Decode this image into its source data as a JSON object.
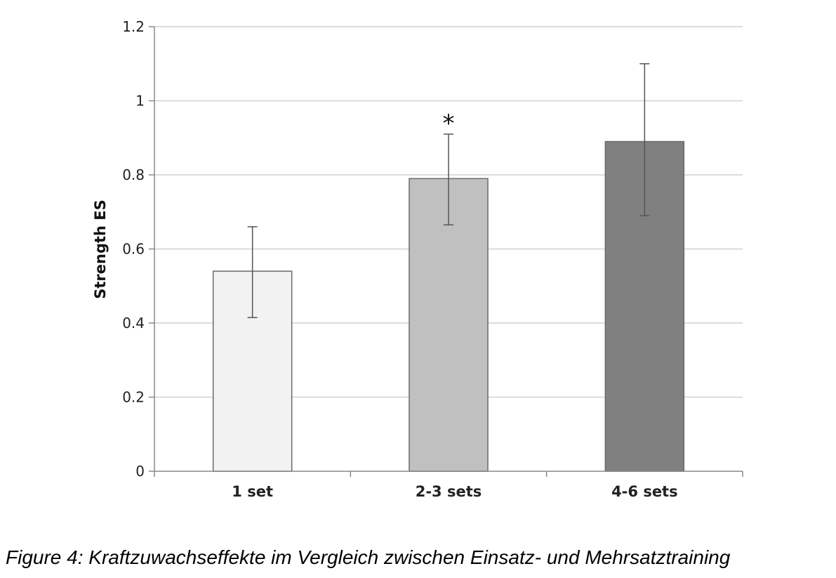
{
  "chart_data": {
    "type": "bar",
    "categories": [
      "1 set",
      "2-3 sets",
      "4-6 sets"
    ],
    "values": [
      0.54,
      0.79,
      0.89
    ],
    "error_low": [
      0.415,
      0.665,
      0.69
    ],
    "error_high": [
      0.66,
      0.91,
      1.1
    ],
    "colors": [
      "#f2f2f2",
      "#c0c0c0",
      "#808080"
    ],
    "ylabel": "Strength ES",
    "ylim": [
      0,
      1.2
    ],
    "yticks": [
      "0",
      "0.2",
      "0.4",
      "0.6",
      "0.8",
      "1",
      "1.2"
    ],
    "ytick_values": [
      0,
      0.2,
      0.4,
      0.6,
      0.8,
      1.0,
      1.2
    ],
    "grid": true,
    "annotations": [
      {
        "category": "2-3 sets",
        "text": "*"
      }
    ]
  },
  "caption": "Figure 4: Kraftzuwachseffekte im Vergleich zwischen Einsatz- und Mehrsatztraining"
}
